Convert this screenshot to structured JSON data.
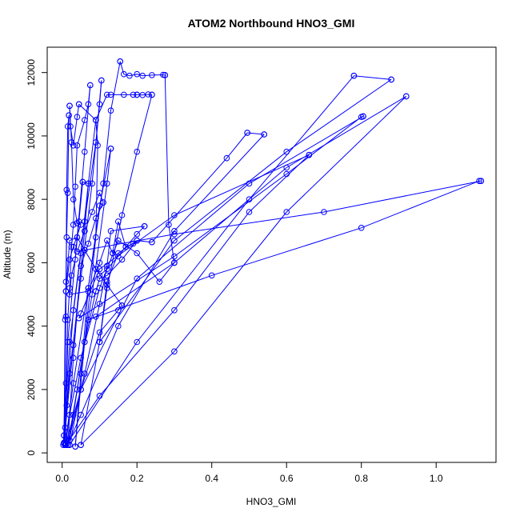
{
  "chart_data": {
    "type": "line",
    "title": "ATOM2 Northbound HNO3_GMI",
    "xlabel": "HNO3_GMI",
    "ylabel": "Altitude (m)",
    "xlim": [
      -0.04,
      1.16
    ],
    "ylim": [
      -300,
      12800
    ],
    "xticks": [
      0.0,
      0.2,
      0.4,
      0.6,
      0.8,
      1.0
    ],
    "xtick_labels": [
      "0.0",
      "0.2",
      "0.4",
      "0.6",
      "0.8",
      "1.0"
    ],
    "yticks": [
      0,
      2000,
      4000,
      6000,
      8000,
      10000,
      12000
    ],
    "ytick_labels": [
      "0",
      "2000",
      "4000",
      "6000",
      "8000",
      "10000",
      "12000"
    ],
    "grid": false,
    "marker": "open-circle",
    "color": "#0000ff",
    "series": [
      {
        "x": [
          0.003,
          0.01,
          0.015,
          0.02,
          0.025,
          0.03,
          0.035,
          0.04,
          0.06,
          0.07,
          0.075
        ],
        "y": [
          250,
          2200,
          4200,
          5200,
          6500,
          7200,
          8400,
          9700,
          10500,
          11000,
          11600
        ]
      },
      {
        "x": [
          0.075,
          0.06,
          0.04,
          0.015,
          0.008,
          0.005
        ],
        "y": [
          11600,
          9500,
          6800,
          3500,
          800,
          300
        ]
      },
      {
        "x": [
          0.005,
          0.02,
          0.05,
          0.08,
          0.1,
          0.105
        ],
        "y": [
          300,
          2500,
          5500,
          8500,
          11000,
          11750
        ]
      },
      {
        "x": [
          0.105,
          0.09,
          0.06,
          0.03,
          0.012,
          0.008
        ],
        "y": [
          11750,
          9800,
          7300,
          4500,
          1500,
          250
        ]
      },
      {
        "x": [
          0.008,
          0.03,
          0.07,
          0.11,
          0.13,
          0.155
        ],
        "y": [
          250,
          2200,
          5200,
          8500,
          10800,
          12350
        ]
      },
      {
        "x": [
          0.155,
          0.165,
          0.18,
          0.2,
          0.215,
          0.24,
          0.27,
          0.275
        ],
        "y": [
          12350,
          11950,
          11900,
          11950,
          11900,
          11920,
          11930,
          11920
        ]
      },
      {
        "x": [
          0.275,
          0.285,
          0.3
        ],
        "y": [
          11920,
          7200,
          6000
        ]
      },
      {
        "x": [
          0.3,
          0.26,
          0.2,
          0.15,
          0.1,
          0.05,
          0.02,
          0.01
        ],
        "y": [
          6000,
          5400,
          6300,
          6700,
          5200,
          3000,
          1200,
          300
        ]
      },
      {
        "x": [
          0.01,
          0.05,
          0.1,
          0.15,
          0.16
        ],
        "y": [
          300,
          2000,
          3800,
          4500,
          4650
        ]
      },
      {
        "x": [
          0.16,
          0.12,
          0.09,
          0.06,
          0.04,
          0.02,
          0.01
        ],
        "y": [
          4650,
          5300,
          5800,
          6400,
          6800,
          6700,
          5100
        ]
      },
      {
        "x": [
          0.01,
          0.02,
          0.03,
          0.05,
          0.04
        ],
        "y": [
          5100,
          6100,
          6500,
          7200,
          7250
        ]
      },
      {
        "x": [
          0.04,
          0.03,
          0.025,
          0.02
        ],
        "y": [
          7250,
          8000,
          9800,
          10950
        ]
      },
      {
        "x": [
          0.02,
          0.022,
          0.03,
          0.04,
          0.045
        ],
        "y": [
          10950,
          10300,
          9700,
          10600,
          11000
        ]
      },
      {
        "x": [
          0.045,
          0.09,
          0.12,
          0.13,
          0.165,
          0.19,
          0.2
        ],
        "y": [
          11000,
          10500,
          11300,
          11300,
          11300,
          11300,
          11300
        ]
      },
      {
        "x": [
          0.2,
          0.215,
          0.23,
          0.24
        ],
        "y": [
          11300,
          11290,
          11310,
          11300
        ]
      },
      {
        "x": [
          0.24,
          0.2,
          0.16,
          0.12,
          0.1
        ],
        "y": [
          11300,
          9500,
          7500,
          5200,
          3500
        ]
      },
      {
        "x": [
          0.1,
          0.12,
          0.15,
          0.2,
          0.24
        ],
        "y": [
          3500,
          5400,
          6300,
          6700,
          6650
        ]
      },
      {
        "x": [
          0.24,
          0.44,
          0.495
        ],
        "y": [
          6650,
          9300,
          10100
        ]
      },
      {
        "x": [
          0.495,
          0.54
        ],
        "y": [
          10100,
          10050
        ]
      },
      {
        "x": [
          0.54,
          0.3,
          0.15,
          0.05,
          0.02,
          0.01
        ],
        "y": [
          10050,
          7000,
          4000,
          1200,
          400,
          250
        ]
      },
      {
        "x": [
          0.01,
          0.1,
          0.3,
          0.5,
          0.66
        ],
        "y": [
          250,
          1800,
          4500,
          7600,
          9400
        ]
      },
      {
        "x": [
          0.66,
          0.3,
          0.1,
          0.05,
          0.045
        ],
        "y": [
          9400,
          7500,
          5800,
          4400,
          4250
        ]
      },
      {
        "x": [
          0.045,
          0.3,
          0.6,
          0.8,
          0.805
        ],
        "y": [
          4250,
          6200,
          8800,
          10600,
          10620
        ]
      },
      {
        "x": [
          0.805,
          0.5,
          0.2,
          0.05,
          0.02
        ],
        "y": [
          10620,
          8500,
          5500,
          2000,
          250
        ]
      },
      {
        "x": [
          0.02,
          0.2,
          0.5,
          0.78
        ],
        "y": [
          250,
          3500,
          8000,
          11900
        ]
      },
      {
        "x": [
          0.78,
          0.88
        ],
        "y": [
          11900,
          11780
        ]
      },
      {
        "x": [
          0.88,
          0.6,
          0.3,
          0.1,
          0.05
        ],
        "y": [
          11780,
          9500,
          6700,
          3500,
          250
        ]
      },
      {
        "x": [
          0.05,
          0.3,
          0.6,
          0.92
        ],
        "y": [
          250,
          3200,
          7600,
          11250
        ]
      },
      {
        "x": [
          0.92,
          0.6,
          0.3,
          0.09,
          0.07
        ],
        "y": [
          11250,
          9000,
          6000,
          4300,
          4200
        ]
      },
      {
        "x": [
          0.07,
          0.4,
          0.8,
          1.115,
          1.12
        ],
        "y": [
          4200,
          5600,
          7100,
          8580,
          8580
        ]
      },
      {
        "x": [
          1.12,
          0.7,
          0.3,
          0.06,
          0.04
        ],
        "y": [
          8580,
          7600,
          6900,
          6400,
          6350
        ]
      },
      {
        "x": [
          0.04,
          0.06,
          0.08,
          0.1,
          0.11
        ],
        "y": [
          6350,
          7000,
          7600,
          8200,
          7900
        ]
      },
      {
        "x": [
          0.11,
          0.09,
          0.07,
          0.05,
          0.03,
          0.015
        ],
        "y": [
          7900,
          7400,
          6600,
          5900,
          3000,
          250
        ]
      },
      {
        "x": [
          0.015,
          0.04,
          0.08,
          0.12,
          0.13
        ],
        "y": [
          250,
          2000,
          5000,
          8500,
          9600
        ]
      },
      {
        "x": [
          0.13,
          0.1,
          0.07,
          0.05,
          0.035
        ],
        "y": [
          9600,
          7800,
          5200,
          2500,
          200
        ]
      },
      {
        "x": [
          0.035,
          0.06,
          0.09,
          0.095,
          0.09
        ],
        "y": [
          200,
          3500,
          6800,
          9700,
          10500
        ]
      },
      {
        "x": [
          0.09,
          0.07,
          0.05,
          0.02,
          0.005
        ],
        "y": [
          10500,
          8500,
          6300,
          3500,
          550
        ]
      },
      {
        "x": [
          0.005,
          0.01,
          0.012,
          0.015,
          0.018
        ],
        "y": [
          550,
          4300,
          8300,
          10300,
          10650
        ]
      },
      {
        "x": [
          0.018,
          0.015,
          0.012,
          0.01,
          0.008,
          0.005
        ],
        "y": [
          10650,
          8200,
          6800,
          5400,
          4200,
          320
        ]
      },
      {
        "x": [
          0.005,
          0.03,
          0.06,
          0.07,
          0.055
        ],
        "y": [
          320,
          3400,
          7000,
          8500,
          8550
        ]
      },
      {
        "x": [
          0.055,
          0.045,
          0.035,
          0.025,
          0.02
        ],
        "y": [
          8550,
          7300,
          6100,
          5600,
          5000
        ]
      },
      {
        "x": [
          0.02,
          0.07,
          0.1,
          0.12,
          0.135
        ],
        "y": [
          5000,
          5100,
          6000,
          6700,
          6300
        ]
      },
      {
        "x": [
          0.135,
          0.15,
          0.17,
          0.19,
          0.2
        ],
        "y": [
          6300,
          7300,
          6500,
          6600,
          6700
        ]
      },
      {
        "x": [
          0.2,
          0.16,
          0.12,
          0.1,
          0.09
        ],
        "y": [
          6700,
          6100,
          5600,
          5500,
          5100
        ]
      },
      {
        "x": [
          0.09,
          0.06,
          0.03,
          0.02,
          0.015
        ],
        "y": [
          5100,
          3500,
          1200,
          400,
          250
        ]
      },
      {
        "x": [
          0.015,
          0.06,
          0.1,
          0.12,
          0.13,
          0.22
        ],
        "y": [
          250,
          2500,
          4700,
          5900,
          7000,
          7150
        ]
      },
      {
        "x": [
          0.22,
          0.2,
          0.17,
          0.15,
          0.12,
          0.1
        ],
        "y": [
          7150,
          6900,
          6500,
          6200,
          5800,
          5600
        ]
      }
    ]
  }
}
